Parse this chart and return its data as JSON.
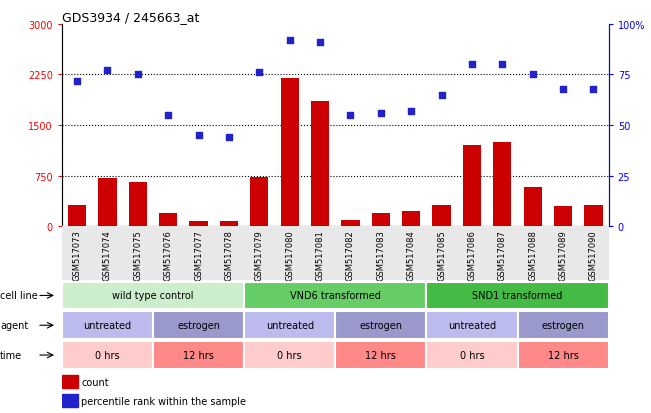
{
  "title": "GDS3934 / 245663_at",
  "samples": [
    "GSM517073",
    "GSM517074",
    "GSM517075",
    "GSM517076",
    "GSM517077",
    "GSM517078",
    "GSM517079",
    "GSM517080",
    "GSM517081",
    "GSM517082",
    "GSM517083",
    "GSM517084",
    "GSM517085",
    "GSM517086",
    "GSM517087",
    "GSM517088",
    "GSM517089",
    "GSM517090"
  ],
  "counts": [
    320,
    710,
    660,
    190,
    80,
    75,
    730,
    2200,
    1850,
    100,
    200,
    220,
    310,
    1200,
    1250,
    580,
    300,
    310
  ],
  "percentiles": [
    72,
    77,
    75,
    55,
    45,
    44,
    76,
    92,
    91,
    55,
    56,
    57,
    65,
    80,
    80,
    75,
    68,
    68
  ],
  "ylim_left": [
    0,
    3000
  ],
  "ylim_right": [
    0,
    100
  ],
  "yticks_left": [
    0,
    750,
    1500,
    2250,
    3000
  ],
  "yticks_right": [
    0,
    25,
    50,
    75,
    100
  ],
  "bar_color": "#cc0000",
  "dot_color": "#2222cc",
  "cell_line_groups": [
    {
      "label": "wild type control",
      "start": 0,
      "end": 6,
      "color": "#cceecc"
    },
    {
      "label": "VND6 transformed",
      "start": 6,
      "end": 12,
      "color": "#66cc66"
    },
    {
      "label": "SND1 transformed",
      "start": 12,
      "end": 18,
      "color": "#44bb44"
    }
  ],
  "agent_groups": [
    {
      "label": "untreated",
      "start": 0,
      "end": 3,
      "color": "#bbbbee"
    },
    {
      "label": "estrogen",
      "start": 3,
      "end": 6,
      "color": "#9999cc"
    },
    {
      "label": "untreated",
      "start": 6,
      "end": 9,
      "color": "#bbbbee"
    },
    {
      "label": "estrogen",
      "start": 9,
      "end": 12,
      "color": "#9999cc"
    },
    {
      "label": "untreated",
      "start": 12,
      "end": 15,
      "color": "#bbbbee"
    },
    {
      "label": "estrogen",
      "start": 15,
      "end": 18,
      "color": "#9999cc"
    }
  ],
  "time_groups": [
    {
      "label": "0 hrs",
      "start": 0,
      "end": 3,
      "color": "#ffcccc"
    },
    {
      "label": "12 hrs",
      "start": 3,
      "end": 6,
      "color": "#ff8888"
    },
    {
      "label": "0 hrs",
      "start": 6,
      "end": 9,
      "color": "#ffcccc"
    },
    {
      "label": "12 hrs",
      "start": 9,
      "end": 12,
      "color": "#ff8888"
    },
    {
      "label": "0 hrs",
      "start": 12,
      "end": 15,
      "color": "#ffcccc"
    },
    {
      "label": "12 hrs",
      "start": 15,
      "end": 18,
      "color": "#ff8888"
    }
  ],
  "legend_count_color": "#cc0000",
  "legend_dot_color": "#2222cc"
}
